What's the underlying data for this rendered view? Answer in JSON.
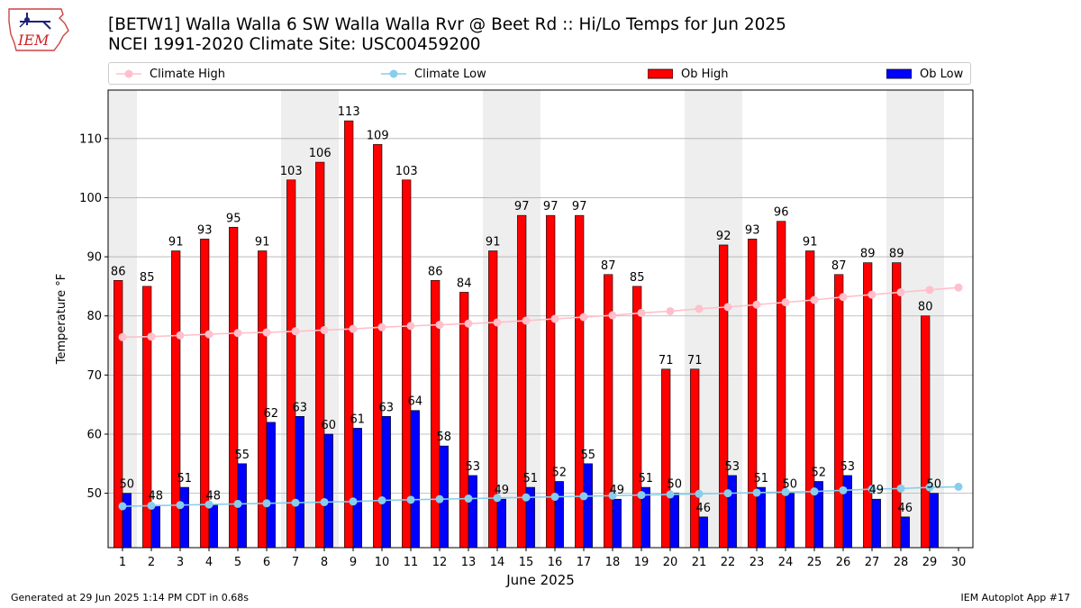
{
  "logo": {
    "text": "IEM"
  },
  "header": {
    "title_line1": "[BETW1] Walla Walla 6 SW Walla Walla Rvr @ Beet Rd :: Hi/Lo Temps for Jun 2025",
    "title_line2": "NCEI 1991-2020 Climate Site: USC00459200"
  },
  "footer": {
    "generated": "Generated at 29 Jun 2025 1:14 PM CDT in 0.68s",
    "app": "IEM Autoplot App #17"
  },
  "colors": {
    "ob_high": "#ff0000",
    "ob_low": "#0000ff",
    "climate_high": "#ffc0cb",
    "climate_low": "#87ceeb",
    "weekend_band": "#eeeeee",
    "grid": "#b0b0b0"
  },
  "chart_data": {
    "type": "bar",
    "title": "[BETW1] Walla Walla 6 SW Walla Walla Rvr @ Beet Rd :: Hi/Lo Temps for Jun 2025",
    "subtitle": "NCEI 1991-2020 Climate Site: USC00459200",
    "xlabel": "June 2025",
    "ylabel": "Temperature °F",
    "categories": [
      "1",
      "2",
      "3",
      "4",
      "5",
      "6",
      "7",
      "8",
      "9",
      "10",
      "11",
      "12",
      "13",
      "14",
      "15",
      "16",
      "17",
      "18",
      "19",
      "20",
      "21",
      "22",
      "23",
      "24",
      "25",
      "26",
      "27",
      "28",
      "29",
      "30"
    ],
    "ylim": [
      40.8,
      118.2
    ],
    "yticks": [
      50,
      60,
      70,
      80,
      90,
      100,
      110
    ],
    "grid": "horizontal",
    "legend_position": "top",
    "weekend_bands": [
      [
        0.5,
        1.5
      ],
      [
        6.5,
        8.5
      ],
      [
        13.5,
        15.5
      ],
      [
        20.5,
        22.5
      ],
      [
        27.5,
        29.5
      ]
    ],
    "series": [
      {
        "name": "Ob High",
        "kind": "bar",
        "values": [
          86,
          85,
          91,
          93,
          95,
          91,
          103,
          106,
          113,
          109,
          103,
          86,
          84,
          91,
          97,
          97,
          97,
          87,
          85,
          71,
          71,
          92,
          93,
          96,
          91,
          87,
          89,
          89,
          80,
          null
        ],
        "labels": [
          "86",
          "85",
          "91",
          "93",
          "95",
          "91",
          "103",
          "106",
          "113",
          "109",
          "103",
          "86",
          "84",
          "91",
          "97",
          "97",
          "97",
          "87",
          "85",
          "71",
          "71",
          "92",
          "93",
          "96",
          "91",
          "87",
          "89",
          "89",
          "80",
          ""
        ]
      },
      {
        "name": "Ob Low",
        "kind": "bar",
        "values": [
          50,
          48,
          51,
          48,
          55,
          62,
          63,
          60,
          61,
          63,
          64,
          58,
          53,
          49,
          51,
          52,
          55,
          49,
          51,
          50,
          46,
          53,
          51,
          50,
          52,
          53,
          49,
          46,
          50,
          null
        ],
        "labels": [
          "50",
          "48",
          "51",
          "48",
          "55",
          "62",
          "63",
          "60",
          "61",
          "63",
          "64",
          "58",
          "53",
          "49",
          "51",
          "52",
          "55",
          "49",
          "51",
          "50",
          "46",
          "53",
          "51",
          "50",
          "52",
          "53",
          "49",
          "46",
          "50",
          ""
        ]
      },
      {
        "name": "Climate High",
        "kind": "line",
        "values": [
          76.4,
          76.5,
          76.7,
          76.9,
          77.1,
          77.2,
          77.4,
          77.6,
          77.8,
          78.1,
          78.3,
          78.5,
          78.7,
          78.9,
          79.2,
          79.5,
          79.8,
          80.1,
          80.5,
          80.8,
          81.2,
          81.5,
          81.9,
          82.3,
          82.7,
          83.2,
          83.6,
          84.0,
          84.4,
          84.8
        ]
      },
      {
        "name": "Climate Low",
        "kind": "line",
        "values": [
          47.8,
          47.9,
          48.0,
          48.1,
          48.2,
          48.3,
          48.4,
          48.5,
          48.6,
          48.8,
          48.9,
          49.0,
          49.1,
          49.2,
          49.3,
          49.4,
          49.5,
          49.6,
          49.7,
          49.8,
          49.9,
          50.0,
          50.1,
          50.2,
          50.3,
          50.5,
          50.7,
          50.8,
          51.0,
          51.1
        ]
      }
    ]
  }
}
